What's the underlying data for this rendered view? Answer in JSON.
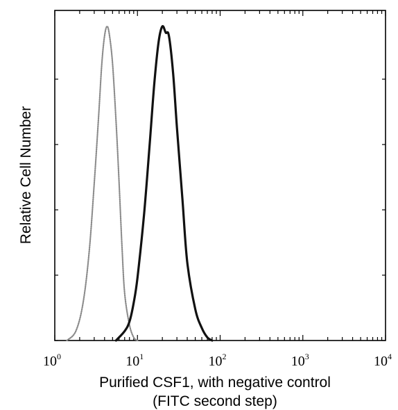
{
  "chart_data": {
    "type": "area",
    "title": "",
    "xlabel_line1": "Purified CSF1, with negative control",
    "xlabel_line2": "(FITC second step)",
    "ylabel": "Relative Cell Number",
    "x_scale": "log",
    "xlim": [
      1,
      10000
    ],
    "ylim": [
      0,
      100
    ],
    "grid": false,
    "x_ticks": [
      {
        "base": "10",
        "exp": "0",
        "value": 1
      },
      {
        "base": "10",
        "exp": "1",
        "value": 10
      },
      {
        "base": "10",
        "exp": "2",
        "value": 100
      },
      {
        "base": "10",
        "exp": "3",
        "value": 1000
      },
      {
        "base": "10",
        "exp": "4",
        "value": 10000
      }
    ],
    "y_minor_ticks": [
      0,
      20.8,
      41.6,
      62.4,
      83.2
    ],
    "series": [
      {
        "role": "negative-control",
        "style": "dotted",
        "color": "#8a8a8a",
        "x": [
          1.4,
          1.8,
          2.2,
          2.6,
          3.0,
          3.4,
          3.7,
          4.0,
          4.3,
          4.6,
          5.0,
          5.5,
          6.0,
          6.5,
          7.0,
          8.0,
          9.0,
          10.0
        ],
        "y": [
          0,
          3,
          12,
          28,
          50,
          72,
          88,
          97,
          100,
          97,
          88,
          70,
          50,
          30,
          15,
          5,
          1,
          0
        ]
      },
      {
        "role": "CSF1",
        "style": "solid",
        "color": "#111111",
        "x": [
          5.5,
          7,
          8,
          9,
          10,
          12,
          14,
          16,
          18,
          20,
          22,
          24,
          27,
          30,
          35,
          40,
          50,
          60,
          70,
          80
        ],
        "y": [
          0,
          3,
          6,
          12,
          20,
          40,
          62,
          82,
          95,
          100,
          98,
          97,
          85,
          68,
          45,
          25,
          10,
          4,
          1,
          0
        ]
      }
    ]
  },
  "colors": {
    "axis": "#000000",
    "background": "#ffffff"
  }
}
